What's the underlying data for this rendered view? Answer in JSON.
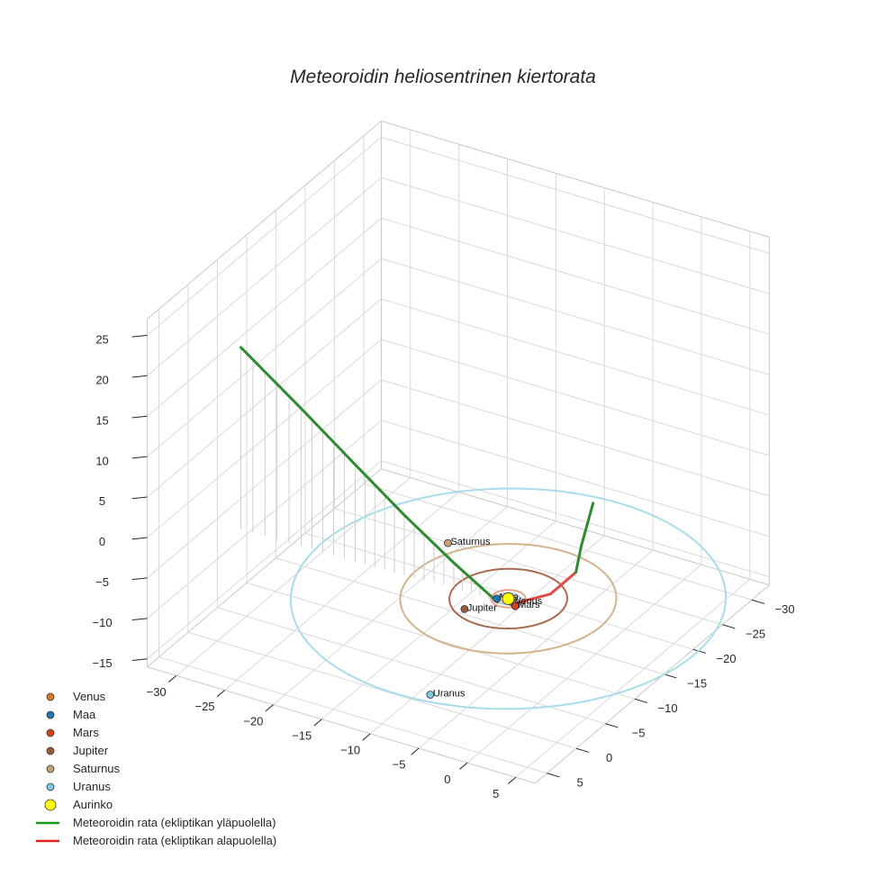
{
  "chart_data": {
    "type": "line",
    "title": "Meteoroidin heliosentrinen kiertorata",
    "axes": {
      "x": {
        "ticks": [
          "−30",
          "−25",
          "−20",
          "−15",
          "−10",
          "−5",
          "0",
          "5"
        ],
        "range": [
          -33,
          7
        ]
      },
      "y": {
        "ticks": [
          "−30",
          "−25",
          "−20",
          "−15",
          "−10",
          "−5",
          "0",
          "5"
        ],
        "range": [
          -33,
          7
        ]
      },
      "z": {
        "ticks": [
          "−15",
          "−10",
          "−5",
          "0",
          "5",
          "10",
          "15",
          "20",
          "25"
        ],
        "range": [
          -16,
          27
        ]
      },
      "grid": true,
      "projection": "3d"
    },
    "bodies": [
      {
        "name": "Venus",
        "label": "Venus",
        "color": "#d97b1e",
        "orbit_radius": 0.72,
        "position": [
          0.6,
          0.35,
          0
        ]
      },
      {
        "name": "Maa",
        "label": "Maa",
        "color": "#1f77b4",
        "orbit_radius": 1.0,
        "position": [
          -0.9,
          0.5,
          0
        ]
      },
      {
        "name": "Mars",
        "label": "Mars",
        "color": "#d4431e",
        "orbit_radius": 1.52,
        "position": [
          1.2,
          0.8,
          0
        ]
      },
      {
        "name": "Jupiter",
        "label": "Jupiter",
        "color": "#9a5a3c",
        "orbit_radius": 5.2,
        "position": [
          -2.4,
          3.5,
          0
        ]
      },
      {
        "name": "Saturnus",
        "label": "Saturnus",
        "color": "#c8a078",
        "orbit_radius": 9.54,
        "position": [
          -9.6,
          -5.6,
          0
        ]
      },
      {
        "name": "Uranus",
        "label": "Uranus",
        "color": "#7ec8e3",
        "orbit_radius": 19.2,
        "position": [
          2.7,
          17.8,
          0
        ]
      },
      {
        "name": "Aurinko",
        "label": "",
        "color": "#ffff00",
        "orbit_radius": 0,
        "position": [
          0,
          0,
          0
        ]
      }
    ],
    "orbits": [
      {
        "name": "Venus",
        "radius": 0.72,
        "color": "#e6b980"
      },
      {
        "name": "Maa",
        "radius": 1.0,
        "color": "#a9c9e2"
      },
      {
        "name": "Mars",
        "radius": 1.52,
        "color": "#e8a08a"
      },
      {
        "name": "Jupiter",
        "radius": 5.2,
        "color": "#a86b4e"
      },
      {
        "name": "Saturnus",
        "radius": 9.54,
        "color": "#d2b48c"
      },
      {
        "name": "Uranus",
        "radius": 19.2,
        "color": "#a8dcea"
      }
    ],
    "trajectory": {
      "series": [
        {
          "name": "Meteoroidin rata (ekliptikan yläpuolella)",
          "color": "#2e8b2e",
          "points": [
            [
              -0.5,
              1.0,
              0
            ],
            [
              -5.2,
              0.7,
              3
            ],
            [
              -10.0,
              1.2,
              7.5
            ],
            [
              -15.0,
              1.3,
              12
            ],
            [
              -20.5,
              1.4,
              17
            ],
            [
              -26.6,
              1.6,
              22.5
            ]
          ]
        },
        {
          "name": "Meteoroidin rata (ekliptikan alapuolella)",
          "color": "#e24a4a",
          "points": [
            [
              1.0,
              0.3,
              0
            ],
            [
              1.7,
              -4.4,
              -1.5
            ],
            [
              1.6,
              -8.9,
              -1.6
            ]
          ]
        },
        {
          "name": "Meteoroidin rata (ekliptikan yläpuolella)",
          "color": "#2e8b2e",
          "points": [
            [
              1.6,
              -8.9,
              -1.6
            ],
            [
              1.5,
              -10.0,
              1
            ],
            [
              1.5,
              -12.0,
              5
            ]
          ]
        }
      ]
    },
    "legend": {
      "placement": "bottom-left",
      "items": [
        {
          "label": "Venus",
          "marker": "dot",
          "color": "#d97b1e"
        },
        {
          "label": "Maa",
          "marker": "dot",
          "color": "#1f77b4"
        },
        {
          "label": "Mars",
          "marker": "dot",
          "color": "#d4431e"
        },
        {
          "label": "Jupiter",
          "marker": "dot",
          "color": "#9a5a3c"
        },
        {
          "label": "Saturnus",
          "marker": "dot",
          "color": "#c8a078"
        },
        {
          "label": "Uranus",
          "marker": "dot",
          "color": "#7ec8e3"
        },
        {
          "label": "Aurinko",
          "marker": "big-dot",
          "color": "#ffff00"
        },
        {
          "label": "Meteoroidin rata (ekliptikan yläpuolella)",
          "marker": "line",
          "color": "#1a9a1a"
        },
        {
          "label": "Meteoroidin rata (ekliptikan alapuolella)",
          "marker": "line",
          "color": "#e8201c"
        }
      ]
    }
  }
}
